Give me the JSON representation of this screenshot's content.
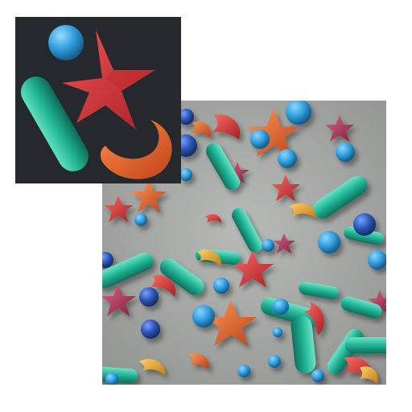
{
  "scene": {
    "description_hidden": "",
    "palette": {
      "background_panel": "#a9aca9",
      "inset_background": "#25282c",
      "teal": "#1eb394",
      "blue": "#2f9fdc",
      "red": "#d4373b",
      "orange": "#e5622a",
      "yellow": "#e6a52a",
      "magenta": "#b8335c",
      "navy": "#2b56b8"
    },
    "inset_icons": [
      "sphere-icon",
      "star-icon",
      "capsule-icon",
      "crescent-icon"
    ]
  }
}
